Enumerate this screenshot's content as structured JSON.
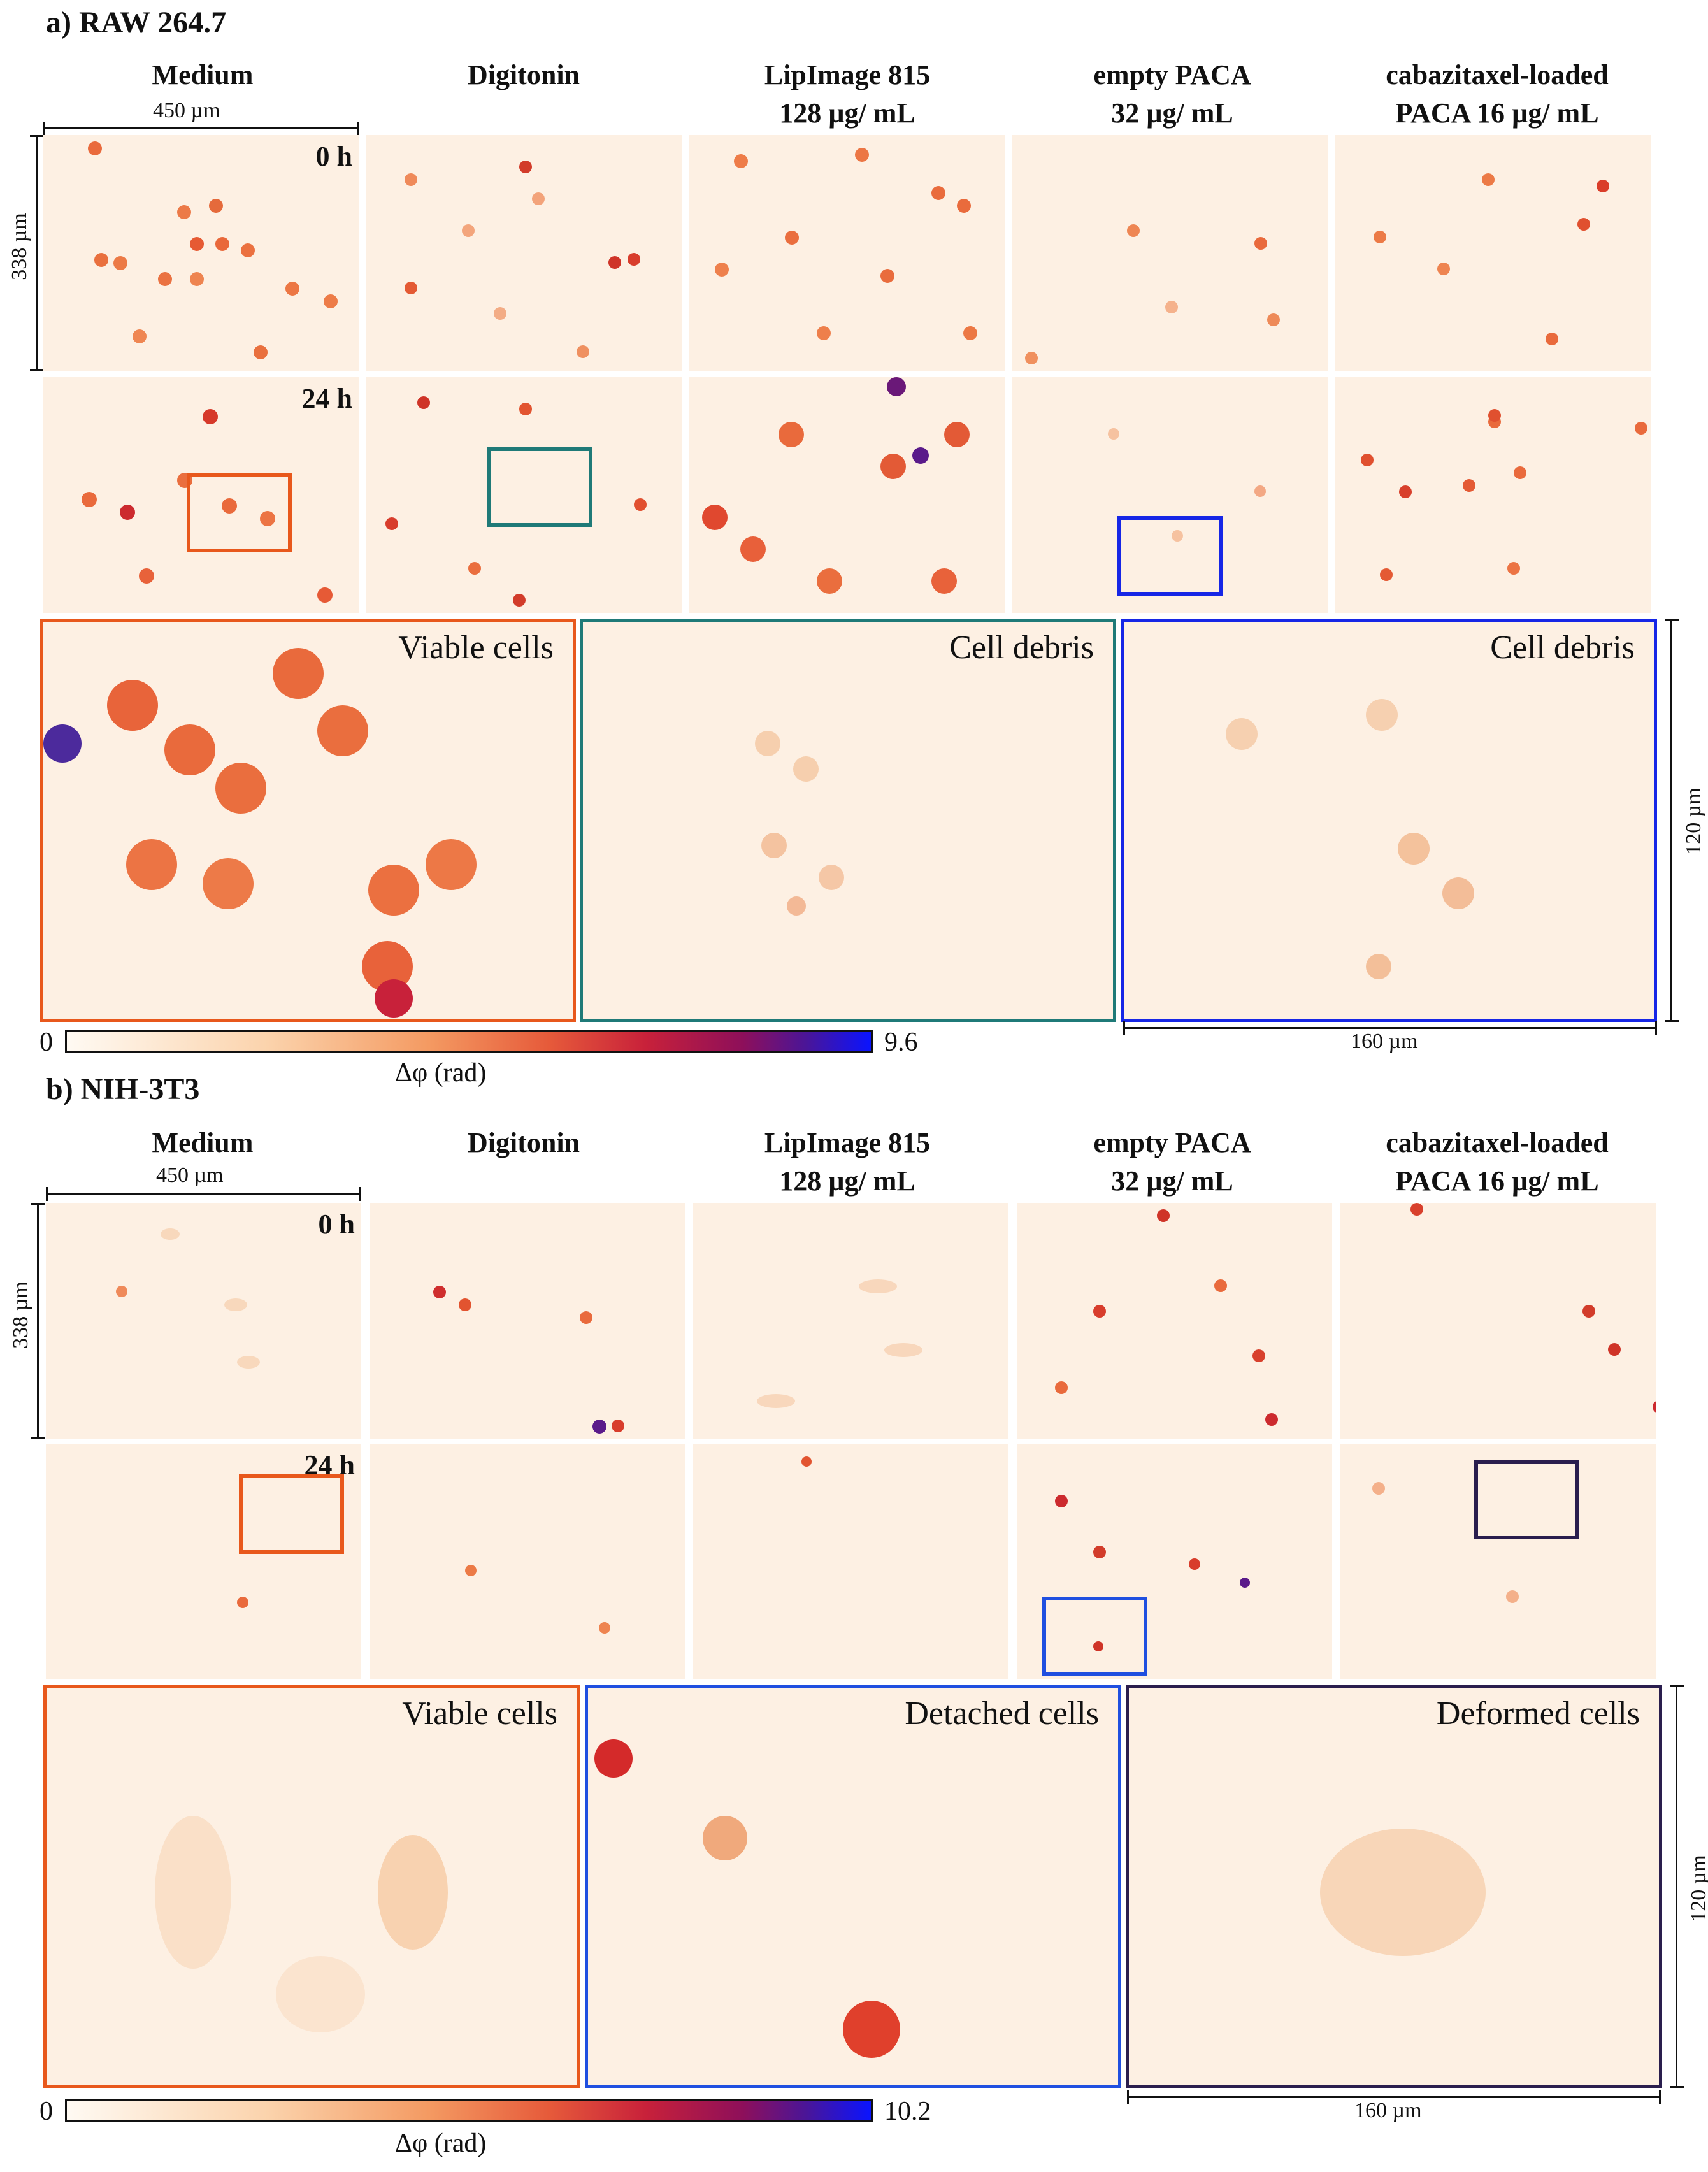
{
  "panel_a": {
    "title": "a) RAW 264.7",
    "columns": [
      {
        "line1": "Medium",
        "line2": ""
      },
      {
        "line1": "Digitonin",
        "line2": ""
      },
      {
        "line1": "LipImage 815",
        "line2": "128 µg/ mL"
      },
      {
        "line1": "empty PACA",
        "line2": "32 µg/ mL"
      },
      {
        "line1": "cabazitaxel-loaded",
        "line2": "PACA 16 µg/ mL"
      }
    ],
    "time_0": "0 h",
    "time_24": "24 h",
    "scale_horizontal": "450 µm",
    "scale_vertical": "338 µm",
    "insets": [
      {
        "label": "Viable cells",
        "color": "#e8581c"
      },
      {
        "label": "Cell debris",
        "color": "#1f7a78"
      },
      {
        "label": "Cell debris",
        "color": "#1626e6"
      }
    ],
    "colorbar": {
      "min": "0",
      "max": "9.6",
      "label": "Δφ (rad)"
    },
    "inset_scale_horizontal": "160 µm",
    "inset_scale_vertical": "120 µm"
  },
  "panel_b": {
    "title": "b) NIH-3T3",
    "columns": [
      {
        "line1": "Medium",
        "line2": ""
      },
      {
        "line1": "Digitonin",
        "line2": ""
      },
      {
        "line1": "LipImage 815",
        "line2": "128 µg/ mL"
      },
      {
        "line1": "empty PACA",
        "line2": "32 µg/ mL"
      },
      {
        "line1": "cabazitaxel-loaded",
        "line2": "PACA 16 µg/ mL"
      }
    ],
    "time_0": "0 h",
    "time_24": "24 h",
    "scale_horizontal": "450 µm",
    "scale_vertical": "338 µm",
    "insets": [
      {
        "label": "Viable cells",
        "color": "#e8581c"
      },
      {
        "label": "Detached cells",
        "color": "#1f4fe0"
      },
      {
        "label": "Deformed cells",
        "color": "#2a1e4e"
      }
    ],
    "colorbar": {
      "min": "0",
      "max": "10.2",
      "label": "Δφ (rad)"
    },
    "inset_scale_horizontal": "160 µm",
    "inset_scale_vertical": "120 µm"
  }
}
